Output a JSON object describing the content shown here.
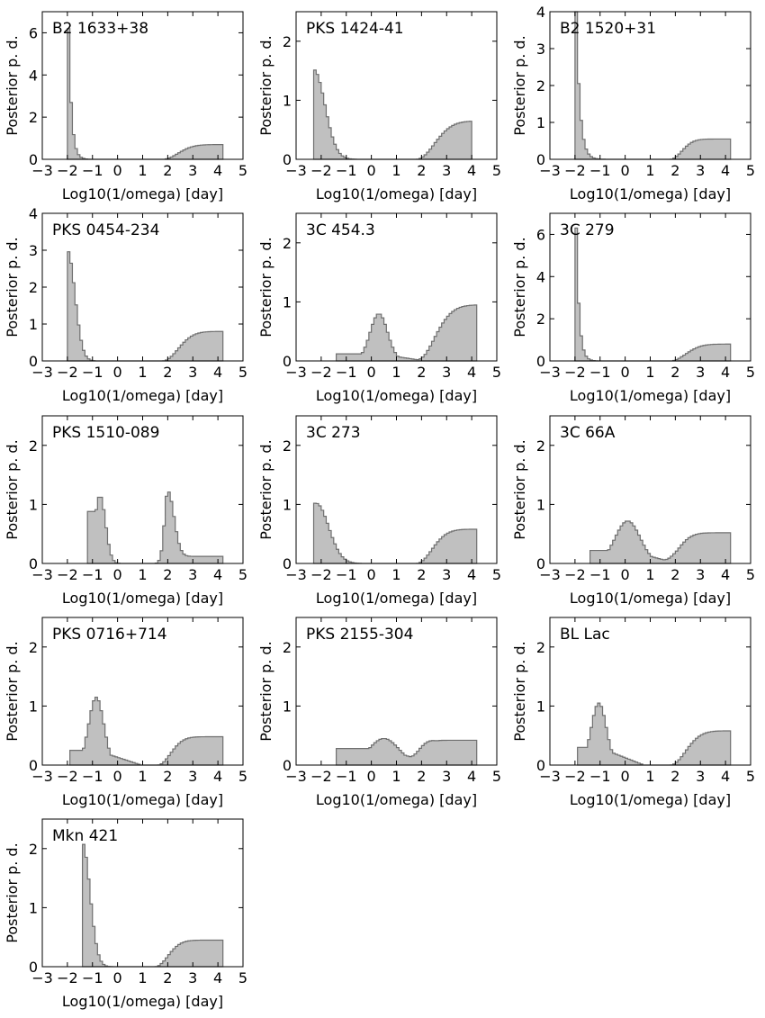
{
  "figure": {
    "style": {
      "fill_color": "#c0c0c0",
      "line_color": "#6f6f6f",
      "frame_color": "#000000"
    },
    "shared_axes": {
      "xlabel": "Log10(1/omega) [day]",
      "ylabel": "Posterior p. d.",
      "x_ticks": [
        -3,
        -2,
        -1,
        0,
        1,
        2,
        3,
        4,
        5
      ],
      "xlim": [
        -3,
        5
      ]
    }
  },
  "chart_data": [
    {
      "type": "histogram",
      "title": "B2 1633+38",
      "xlabel": "Log10(1/omega) [day]",
      "ylabel": "Posterior p. d.",
      "xlim": [
        -3,
        5
      ],
      "ylim": [
        0,
        7
      ],
      "y_ticks": [
        0,
        2,
        4,
        6
      ],
      "x_min": -2.0,
      "x_max": 4.2,
      "low_peak": {
        "center": -1.95,
        "height": 6.2,
        "width": 0.12,
        "shape": "spike"
      },
      "high_tail": {
        "start": 1.8,
        "plateau": 0.7,
        "rise": 0.6
      }
    },
    {
      "type": "histogram",
      "title": "PKS 1424-41",
      "xlabel": "Log10(1/omega) [day]",
      "ylabel": "Posterior p. d.",
      "xlim": [
        -3,
        5
      ],
      "ylim": [
        0,
        2.5
      ],
      "y_ticks": [
        0,
        1,
        2
      ],
      "x_min": -2.3,
      "x_max": 4.0,
      "low_peak": {
        "center": -2.3,
        "height": 1.52,
        "width": 0.45,
        "shape": "edge"
      },
      "high_tail": {
        "start": 1.8,
        "plateau": 0.65,
        "rise": 0.7
      }
    },
    {
      "type": "histogram",
      "title": "B2 1520+31",
      "xlabel": "Log10(1/omega) [day]",
      "ylabel": "Posterior p. d.",
      "xlim": [
        -3,
        5
      ],
      "ylim": [
        0,
        4
      ],
      "y_ticks": [
        0,
        1,
        2,
        3,
        4
      ],
      "x_min": -2.0,
      "x_max": 4.2,
      "low_peak": {
        "center": -1.95,
        "height": 4.0,
        "width": 0.15,
        "shape": "spike"
      },
      "high_tail": {
        "start": 1.8,
        "plateau": 0.55,
        "rise": 0.45
      }
    },
    {
      "type": "histogram",
      "title": "PKS 0454-234",
      "xlabel": "Log10(1/omega) [day]",
      "ylabel": "Posterior p. d.",
      "xlim": [
        -3,
        5
      ],
      "ylim": [
        0,
        4
      ],
      "y_ticks": [
        0,
        1,
        2,
        3,
        4
      ],
      "x_min": -2.0,
      "x_max": 4.2,
      "low_peak": {
        "center": -2.0,
        "height": 3.0,
        "width": 0.3,
        "shape": "edge"
      },
      "high_tail": {
        "start": 1.8,
        "plateau": 0.8,
        "rise": 0.6
      }
    },
    {
      "type": "histogram",
      "title": "3C 454.3",
      "xlabel": "Log10(1/omega) [day]",
      "ylabel": "Posterior p. d.",
      "xlim": [
        -3,
        5
      ],
      "ylim": [
        0,
        2.5
      ],
      "y_ticks": [
        0,
        1,
        2
      ],
      "x_min": -1.4,
      "x_max": 4.2,
      "low_peak": {
        "center": 0.3,
        "height": 0.8,
        "width": 0.35,
        "shape": "gauss",
        "base": 0.12
      },
      "high_tail": {
        "start": 1.8,
        "plateau": 0.95,
        "rise": 0.7
      }
    },
    {
      "type": "histogram",
      "title": "3C 279",
      "xlabel": "Log10(1/omega) [day]",
      "ylabel": "Posterior p. d.",
      "xlim": [
        -3,
        5
      ],
      "ylim": [
        0,
        7
      ],
      "y_ticks": [
        0,
        2,
        4,
        6
      ],
      "x_min": -2.0,
      "x_max": 4.2,
      "low_peak": {
        "center": -1.95,
        "height": 6.3,
        "width": 0.12,
        "shape": "spike"
      },
      "high_tail": {
        "start": 1.8,
        "plateau": 0.8,
        "rise": 0.6
      }
    },
    {
      "type": "histogram",
      "title": "PKS 1510-089",
      "xlabel": "Log10(1/omega) [day]",
      "ylabel": "Posterior p. d.",
      "xlim": [
        -3,
        5
      ],
      "ylim": [
        0,
        2.5
      ],
      "y_ticks": [
        0,
        1,
        2
      ],
      "x_min": -1.2,
      "x_max": 4.2,
      "low_peak": {
        "center": -0.7,
        "height": 1.15,
        "width": 0.22,
        "shape": "gauss",
        "base": 0.88,
        "base_until": -0.9
      },
      "high_tail": {
        "start": 1.5,
        "plateau": 0.12,
        "rise": 0.2,
        "bump_center": 2.0,
        "bump_height": 1.15,
        "bump_width": 0.25
      }
    },
    {
      "type": "histogram",
      "title": "3C 273",
      "xlabel": "Log10(1/omega) [day]",
      "ylabel": "Posterior p. d.",
      "xlim": [
        -3,
        5
      ],
      "ylim": [
        0,
        2.5
      ],
      "y_ticks": [
        0,
        1,
        2
      ],
      "x_min": -2.3,
      "x_max": 4.2,
      "low_peak": {
        "center": -2.2,
        "height": 1.02,
        "width": 0.5,
        "shape": "edge"
      },
      "high_tail": {
        "start": 1.8,
        "plateau": 0.58,
        "rise": 0.6
      }
    },
    {
      "type": "histogram",
      "title": "3C 66A",
      "xlabel": "Log10(1/omega) [day]",
      "ylabel": "Posterior p. d.",
      "xlim": [
        -3,
        5
      ],
      "ylim": [
        0,
        2.5
      ],
      "y_ticks": [
        0,
        1,
        2
      ],
      "x_min": -1.4,
      "x_max": 4.2,
      "low_peak": {
        "center": 0.1,
        "height": 0.72,
        "width": 0.5,
        "shape": "gauss",
        "base": 0.22
      },
      "high_tail": {
        "start": 1.5,
        "plateau": 0.52,
        "rise": 0.55
      }
    },
    {
      "type": "histogram",
      "title": "PKS 0716+714",
      "xlabel": "Log10(1/omega) [day]",
      "ylabel": "Posterior p. d.",
      "xlim": [
        -3,
        5
      ],
      "ylim": [
        0,
        2.5
      ],
      "y_ticks": [
        0,
        1,
        2
      ],
      "x_min": -1.9,
      "x_max": 4.2,
      "low_peak": {
        "center": -0.85,
        "height": 1.15,
        "width": 0.3,
        "shape": "gauss",
        "base": 0.25
      },
      "high_tail": {
        "start": 1.6,
        "plateau": 0.48,
        "rise": 0.5
      }
    },
    {
      "type": "histogram",
      "title": "PKS 2155-304",
      "xlabel": "Log10(1/omega) [day]",
      "ylabel": "Posterior p. d.",
      "xlim": [
        -3,
        5
      ],
      "ylim": [
        0,
        2.5
      ],
      "y_ticks": [
        0,
        1,
        2
      ],
      "x_min": -1.4,
      "x_max": 4.2,
      "low_peak": {
        "center": 0.5,
        "height": 0.45,
        "width": 0.6,
        "shape": "gauss",
        "base": 0.28
      },
      "high_tail": {
        "start": 1.5,
        "plateau": 0.42,
        "rise": 0.4
      }
    },
    {
      "type": "histogram",
      "title": "BL Lac",
      "xlabel": "Log10(1/omega) [day]",
      "ylabel": "Posterior p. d.",
      "xlim": [
        -3,
        5
      ],
      "ylim": [
        0,
        2.5
      ],
      "y_ticks": [
        0,
        1,
        2
      ],
      "x_min": -1.9,
      "x_max": 4.2,
      "low_peak": {
        "center": -1.05,
        "height": 1.05,
        "width": 0.3,
        "shape": "gauss",
        "base": 0.3
      },
      "high_tail": {
        "start": 1.8,
        "plateau": 0.58,
        "rise": 0.6
      }
    },
    {
      "type": "histogram",
      "title": "Mkn 421",
      "xlabel": "Log10(1/omega) [day]",
      "ylabel": "Posterior p. d.",
      "xlim": [
        -3,
        5
      ],
      "ylim": [
        0,
        2.5
      ],
      "y_ticks": [
        0,
        1,
        2
      ],
      "x_min": -1.4,
      "x_max": 4.2,
      "low_peak": {
        "center": -1.4,
        "height": 2.1,
        "width": 0.3,
        "shape": "edge"
      },
      "high_tail": {
        "start": 1.5,
        "plateau": 0.45,
        "rise": 0.5
      }
    }
  ]
}
